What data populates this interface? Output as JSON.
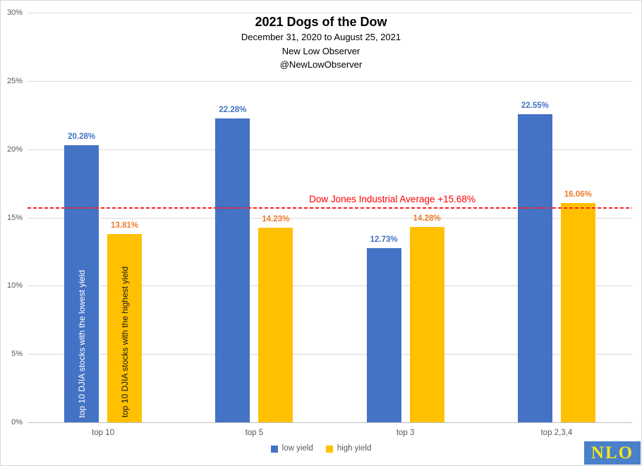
{
  "header": {
    "title": "2021 Dogs of the Dow",
    "subtitle_lines": [
      "December 31, 2020 to August 25, 2021",
      "New Low Observer",
      "@NewLowObserver"
    ]
  },
  "chart_data": {
    "type": "bar",
    "title": "2021 Dogs of the Dow",
    "categories": [
      "top 10",
      "top 5",
      "top 3",
      "top 2,3,4"
    ],
    "series": [
      {
        "name": "low yield",
        "color": "#4472C4",
        "label_color": "#4472C4",
        "values": [
          20.28,
          22.28,
          12.73,
          22.55
        ],
        "labels": [
          "20.28%",
          "22.28%",
          "12.73%",
          "22.55%"
        ]
      },
      {
        "name": "high yield",
        "color": "#FFC000",
        "label_color": "#ED7D31",
        "values": [
          13.81,
          14.23,
          14.28,
          16.06
        ],
        "labels": [
          "13.81%",
          "14.23%",
          "14.28%",
          "16.06%"
        ]
      }
    ],
    "bar_annotations": {
      "category_index": 0,
      "texts": [
        "top 10 DJIA stocks with the lowest yield",
        "top 10 DJIA stocks with the highest yield"
      ],
      "colors": [
        "#FFFFFF",
        "#1a1a1a"
      ]
    },
    "reference_line": {
      "value": 15.68,
      "label": "Dow Jones Industrial Average +15.68%",
      "color": "#fe0000"
    },
    "ylim": [
      0,
      30
    ],
    "ytick_step": 5,
    "ytick_labels": [
      "0%",
      "5%",
      "10%",
      "15%",
      "20%",
      "25%",
      "30%"
    ],
    "grid": true,
    "legend_position": "bottom",
    "grid_color": "#d9d9d9",
    "axis_text_color": "#595959"
  },
  "logo": {
    "text": "NLO",
    "bg_color": "#4a80c9",
    "text_color": "#f2e51e"
  }
}
